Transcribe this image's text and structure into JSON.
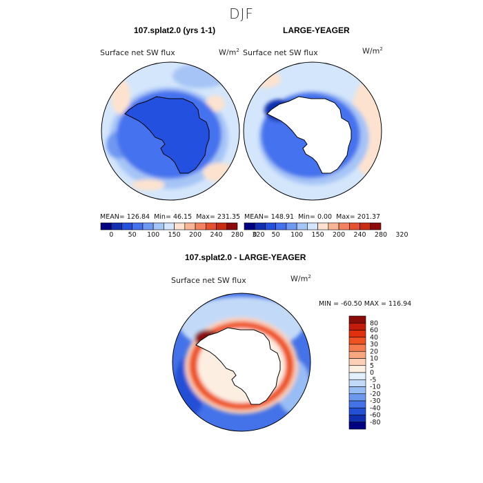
{
  "figure": {
    "season_title": "DJF"
  },
  "panels": [
    {
      "title": "107.splat2.0 (yrs 1-1)",
      "variable": "Surface net SW flux",
      "unit": "W/m",
      "unit_sup": "2",
      "stats": {
        "mean_label": "MEAN=",
        "mean": "126.84",
        "min_label": "Min=",
        "min": "46.15",
        "max_label": "Max=",
        "max": "231.35"
      }
    },
    {
      "title": "LARGE-YEAGER",
      "variable": "Surface net SW flux",
      "unit": "W/m",
      "unit_sup": "2",
      "stats": {
        "mean_label": "MEAN=",
        "mean": "148.91",
        "min_label": "Min=",
        "min": "0.00",
        "max_label": "Max=",
        "max": "201.37"
      }
    },
    {
      "title": "107.splat2.0 - LARGE-YEAGER",
      "variable": "Surface net SW flux",
      "unit": "W/m",
      "unit_sup": "2",
      "stats_text": "MIN = -60.50  MAX = 116.94"
    }
  ],
  "colorbar_abs": {
    "labels": [
      "0",
      "50",
      "100",
      "150",
      "200",
      "240",
      "280",
      "320"
    ],
    "colors": [
      "#000080",
      "#1030b0",
      "#2450e0",
      "#4472ee",
      "#7098f2",
      "#a6c4f6",
      "#d4e6fb",
      "#fde3cf",
      "#f9b595",
      "#f2835e",
      "#e4512c",
      "#c82c12",
      "#8a0c08"
    ]
  },
  "colorbar_diff": {
    "labels": [
      "80",
      "60",
      "40",
      "30",
      "20",
      "10",
      "5",
      "0",
      "-5",
      "-10",
      "-20",
      "-30",
      "-40",
      "-60",
      "-80"
    ],
    "colors": [
      "#8a0c08",
      "#c41c0c",
      "#e0300e",
      "#ee5222",
      "#f47c50",
      "#f8a680",
      "#fcd0b8",
      "#fdeee2",
      "#e3effd",
      "#c2daf8",
      "#98bcf4",
      "#6c98ee",
      "#4472e8",
      "#2450d6",
      "#1030b0",
      "#000080"
    ]
  },
  "colors": {
    "land": "#ffffff",
    "diff_positive": "#e0300e",
    "diff_negative": "#2450e0"
  }
}
